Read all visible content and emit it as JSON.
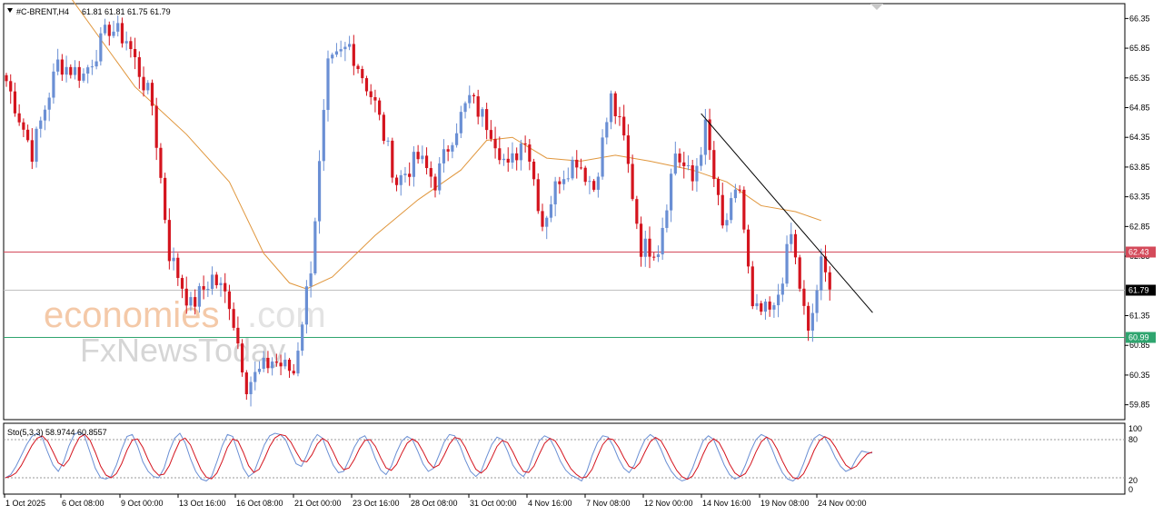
{
  "header": {
    "symbol": "#C-BRENT,H4",
    "ohlc": "61.81 61.81 61.75 61.79"
  },
  "watermark": {
    "brand_main": "economies",
    "brand_suffix": ".com",
    "brand_second": "FxNewsToday"
  },
  "oscillator": {
    "label": "Sto(5,3,3) 58.9744 60.8557",
    "levels": [
      "100",
      "80",
      "20",
      "0"
    ]
  },
  "colors": {
    "bull": "#6a8fd4",
    "bear": "#d4141e",
    "ma": "#e0963c",
    "resistance_line": "#d44a5a",
    "support_line": "#2fa56f",
    "current_line": "#c0c0c0",
    "price_badge_current": "#000000",
    "sto_main": "#6a8fd4",
    "sto_signal": "#d4141e"
  },
  "chart_data": {
    "type": "candlestick",
    "instrument": "#C-BRENT",
    "timeframe": "H4",
    "ylim": [
      59.6,
      66.6
    ],
    "y_ticks": [
      66.35,
      65.85,
      65.35,
      64.85,
      64.35,
      63.85,
      63.35,
      62.85,
      62.35,
      61.35,
      60.85,
      60.35,
      59.85
    ],
    "x_ticks": [
      "1 Oct 2025",
      "6 Oct 08:00",
      "9 Oct 00:00",
      "13 Oct 16:00",
      "16 Oct 08:00",
      "21 Oct 00:00",
      "23 Oct 16:00",
      "28 Oct 08:00",
      "31 Oct 00:00",
      "4 Nov 16:00",
      "7 Nov 08:00",
      "12 Nov 00:00",
      "14 Nov 16:00",
      "19 Nov 08:00",
      "24 Nov 00:00"
    ],
    "horizontal_levels": [
      {
        "value": 62.43,
        "label": "62.43",
        "kind": "resistance"
      },
      {
        "value": 61.79,
        "label": "61.79",
        "kind": "current"
      },
      {
        "value": 60.99,
        "label": "60.99",
        "kind": "support"
      }
    ],
    "trendline": {
      "from": {
        "bar_index": 162,
        "price": 64.75
      },
      "to": {
        "bar_index": 202,
        "price": 61.4
      }
    },
    "path_anchors": [
      [
        0,
        65.3
      ],
      [
        6,
        64.1
      ],
      [
        12,
        65.6
      ],
      [
        18,
        65.4
      ],
      [
        24,
        66.2
      ],
      [
        28,
        66.0
      ],
      [
        34,
        64.9
      ],
      [
        38,
        62.4
      ],
      [
        43,
        61.5
      ],
      [
        48,
        62.0
      ],
      [
        52,
        61.6
      ],
      [
        56,
        60.2
      ],
      [
        62,
        60.6
      ],
      [
        67,
        60.4
      ],
      [
        71,
        62.2
      ],
      [
        75,
        65.5
      ],
      [
        80,
        65.9
      ],
      [
        86,
        64.9
      ],
      [
        91,
        63.6
      ],
      [
        96,
        64.0
      ],
      [
        100,
        63.6
      ],
      [
        104,
        64.4
      ],
      [
        108,
        65.0
      ],
      [
        113,
        64.5
      ],
      [
        117,
        63.8
      ],
      [
        121,
        64.4
      ],
      [
        125,
        62.9
      ],
      [
        129,
        63.7
      ],
      [
        133,
        64.0
      ],
      [
        137,
        63.5
      ],
      [
        141,
        65.0
      ],
      [
        144,
        64.3
      ],
      [
        148,
        62.5
      ],
      [
        152,
        62.5
      ],
      [
        156,
        64.1
      ],
      [
        160,
        63.6
      ],
      [
        163,
        64.5
      ],
      [
        167,
        62.8
      ],
      [
        171,
        63.5
      ],
      [
        174,
        61.4
      ],
      [
        179,
        61.4
      ],
      [
        183,
        62.7
      ],
      [
        187,
        60.99
      ],
      [
        190,
        62.2
      ],
      [
        192,
        61.79
      ]
    ],
    "moving_average": [
      [
        0,
        67.6
      ],
      [
        15,
        66.7
      ],
      [
        30,
        65.2
      ],
      [
        42,
        64.4
      ],
      [
        52,
        63.6
      ],
      [
        60,
        62.4
      ],
      [
        66,
        61.9
      ],
      [
        70,
        61.8
      ],
      [
        76,
        62.0
      ],
      [
        86,
        62.7
      ],
      [
        96,
        63.3
      ],
      [
        106,
        63.8
      ],
      [
        112,
        64.3
      ],
      [
        118,
        64.35
      ],
      [
        126,
        64.0
      ],
      [
        134,
        63.95
      ],
      [
        142,
        64.05
      ],
      [
        150,
        63.95
      ],
      [
        160,
        63.8
      ],
      [
        168,
        63.6
      ],
      [
        176,
        63.2
      ],
      [
        184,
        63.1
      ],
      [
        190,
        62.95
      ]
    ],
    "stochastic": {
      "params": "Sto(5,3,3)",
      "main_value": 58.9744,
      "signal_value": 60.8557,
      "levels": [
        80,
        20
      ],
      "main": [
        20,
        25,
        38,
        55,
        72,
        85,
        90,
        82,
        60,
        40,
        30,
        45,
        70,
        88,
        92,
        85,
        60,
        35,
        20,
        18,
        22,
        40,
        65,
        85,
        88,
        70,
        45,
        30,
        22,
        20,
        35,
        62,
        82,
        90,
        75,
        50,
        30,
        18,
        15,
        22,
        45,
        70,
        88,
        85,
        60,
        35,
        22,
        28,
        50,
        72,
        86,
        90,
        88,
        80,
        60,
        42,
        38,
        55,
        76,
        88,
        82,
        60,
        40,
        28,
        30,
        48,
        68,
        82,
        86,
        72,
        50,
        32,
        25,
        38,
        60,
        78,
        85,
        80,
        62,
        42,
        30,
        35,
        55,
        76,
        88,
        86,
        70,
        48,
        30,
        22,
        30,
        52,
        72,
        84,
        80,
        62,
        40,
        28,
        22,
        35,
        58,
        78,
        86,
        82,
        66,
        46,
        32,
        24,
        20,
        15,
        30,
        55,
        75,
        86,
        84,
        70,
        50,
        35,
        28,
        40,
        62,
        80,
        88,
        82,
        65,
        45,
        30,
        20,
        15,
        18,
        35,
        58,
        78,
        86,
        80,
        60,
        40,
        25,
        18,
        22,
        40,
        62,
        80,
        88,
        84,
        66,
        45,
        28,
        18,
        15,
        22,
        42,
        65,
        82,
        88,
        84,
        70,
        52,
        38,
        30,
        34,
        50,
        62,
        60,
        59
      ]
    }
  }
}
